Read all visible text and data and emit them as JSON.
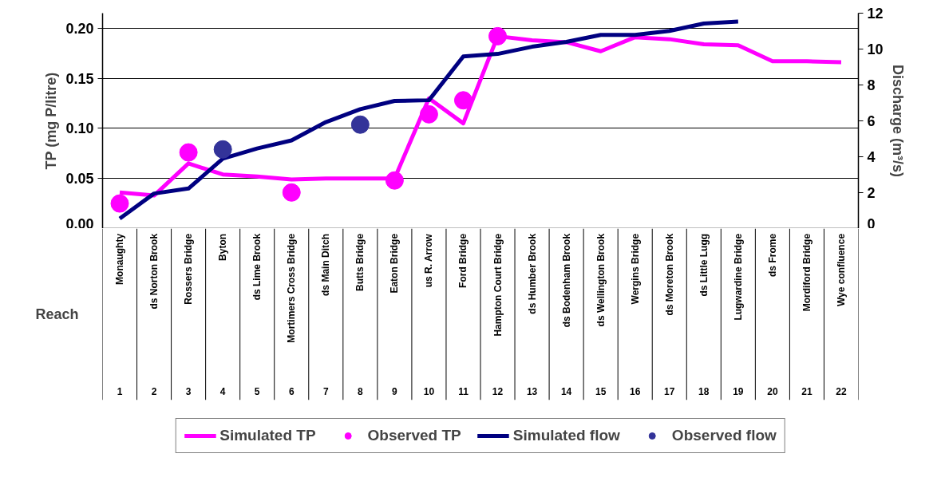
{
  "chart_data": {
    "type": "line",
    "xlabel": "Reach",
    "ylabel": "TP (mg P/litre)",
    "y2label": "Discharge (m³/s)",
    "annotations": [
      "1",
      "2",
      "3",
      "4",
      "5",
      "6",
      "7",
      "8",
      "9",
      "10",
      "11",
      "12",
      "13",
      "14",
      "15",
      "16",
      "17",
      "18",
      "19",
      "20",
      "21",
      "22"
    ],
    "categories": [
      "Monaughty",
      "ds Norton Brook",
      "Rossers Bridge",
      "Byton",
      "ds Lime Brook",
      "Mortimers Cross Bridge",
      "ds Main Ditch",
      "Butts Bridge",
      "Eaton Bridge",
      "us R. Arrow",
      "Ford Bridge",
      "Hampton Court Bridge",
      "ds Humber Brook",
      "ds Bodenham Brook",
      "ds Wellington Brook",
      "Wergins Bridge",
      "ds Moreton Brook",
      "ds Little Lugg",
      "Lugwardine Bridge",
      "ds Frome",
      "Mordiford Bridge",
      "Wye confluence"
    ],
    "ylim": [
      0,
      0.215
    ],
    "yticks": [
      {
        "value": 0,
        "label": "0.00"
      },
      {
        "value": 0.05,
        "label": "0.05"
      },
      {
        "value": 0.1,
        "label": "0.10"
      },
      {
        "value": 0.15,
        "label": "0.15"
      },
      {
        "value": 0.2,
        "label": "0.20"
      }
    ],
    "y2lim": [
      0,
      12
    ],
    "y2ticks": [
      0,
      2,
      4,
      6,
      8,
      10,
      12
    ],
    "grid": "y",
    "legend": "bottom",
    "series": [
      {
        "name": "Simulated TP",
        "type": "line",
        "color": "#ff00ff",
        "values": [
          0.036,
          0.033,
          0.065,
          0.054,
          0.052,
          0.049,
          0.05,
          0.05,
          0.05,
          0.13,
          0.105,
          0.192,
          0.188,
          0.186,
          0.177,
          0.191,
          0.189,
          0.184,
          0.183,
          0.167,
          0.167,
          0.166
        ]
      },
      {
        "name": "Observed TP",
        "type": "scatter",
        "marker": "circle",
        "color": "#ff00ff",
        "values": [
          0.025,
          null,
          0.076,
          null,
          null,
          0.036,
          null,
          null,
          0.048,
          0.114,
          0.128,
          0.192,
          null,
          null,
          null,
          null,
          null,
          null,
          null,
          null,
          null,
          null
        ]
      },
      {
        "name": "Simulated flow",
        "type": "line",
        "axis": "y2",
        "color": "#000080",
        "values": [
          0.56,
          1.95,
          2.23,
          3.89,
          4.46,
          4.91,
          5.93,
          6.65,
          7.11,
          7.15,
          9.59,
          9.73,
          10.13,
          10.4,
          10.79,
          10.79,
          11.01,
          11.42,
          11.53,
          null,
          null,
          null
        ]
      },
      {
        "name": "Observed flow",
        "type": "scatter",
        "marker": "circle",
        "axis": "y2",
        "color": "#333399",
        "values": [
          null,
          null,
          null,
          4.41,
          null,
          null,
          null,
          5.79,
          null,
          null,
          null,
          null,
          null,
          null,
          null,
          null,
          null,
          null,
          null,
          null,
          null,
          null
        ]
      }
    ]
  }
}
